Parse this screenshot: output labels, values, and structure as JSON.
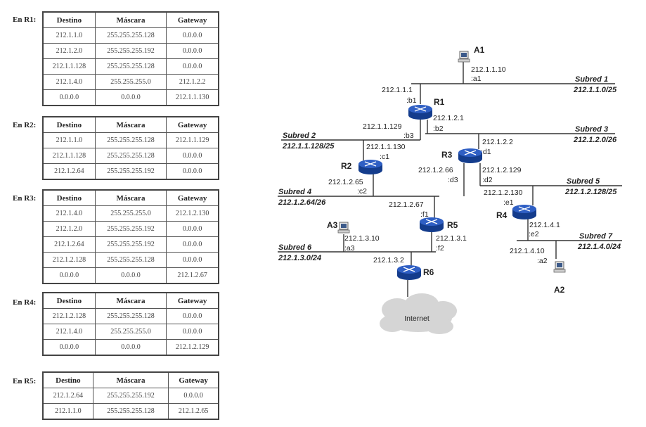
{
  "tables": [
    {
      "label": "En R1:",
      "headers": [
        "Destino",
        "Máscara",
        "Gateway"
      ],
      "rows": [
        [
          "212.1.1.0",
          "255.255.255.128",
          "0.0.0.0"
        ],
        [
          "212.1.2.0",
          "255.255.255.192",
          "0.0.0.0"
        ],
        [
          "212.1.1.128",
          "255.255.255.128",
          "0.0.0.0"
        ],
        [
          "212.1.4.0",
          "255.255.255.0",
          "212.1.2.2"
        ],
        [
          "0.0.0.0",
          "0.0.0.0",
          "212.1.1.130"
        ]
      ]
    },
    {
      "label": "En R2:",
      "headers": [
        "Destino",
        "Máscara",
        "Gateway"
      ],
      "rows": [
        [
          "212.1.1.0",
          "255.255.255.128",
          "212.1.1.129"
        ],
        [
          "212.1.1.128",
          "255.255.255.128",
          "0.0.0.0"
        ],
        [
          "212.1.2.64",
          "255.255.255.192",
          "0.0.0.0"
        ]
      ]
    },
    {
      "label": "En R3:",
      "headers": [
        "Destino",
        "Máscara",
        "Gateway"
      ],
      "rows": [
        [
          "212.1.4.0",
          "255.255.255.0",
          "212.1.2.130"
        ],
        [
          "212.1.2.0",
          "255.255.255.192",
          "0.0.0.0"
        ],
        [
          "212.1.2.64",
          "255.255.255.192",
          "0.0.0.0"
        ],
        [
          "212.1.2.128",
          "255.255.255.128",
          "0.0.0.0"
        ],
        [
          "0.0.0.0",
          "0.0.0.0",
          "212.1.2.67"
        ]
      ]
    },
    {
      "label": "En R4:",
      "headers": [
        "Destino",
        "Máscara",
        "Gateway"
      ],
      "rows": [
        [
          "212.1.2.128",
          "255.255.255.128",
          "0.0.0.0"
        ],
        [
          "212.1.4.0",
          "255.255.255.0",
          "0.0.0.0"
        ],
        [
          "0.0.0.0",
          "0.0.0.0",
          "212.1.2.129"
        ]
      ]
    },
    {
      "label": "En R5:",
      "headers": [
        "Destino",
        "Máscara",
        "Gateway"
      ],
      "rows": [
        [
          "212.1.2.64",
          "255.255.255.192",
          "0.0.0.0"
        ],
        [
          "212.1.1.0",
          "255.255.255.128",
          "212.1.2.65"
        ]
      ]
    }
  ],
  "network": {
    "colors": {
      "router": "#2f5fc4",
      "router_dark": "#143c8c",
      "cloud": "#d5d5d5",
      "line": "#333333"
    },
    "routers": [
      "R1",
      "R2",
      "R3",
      "R4",
      "R5",
      "R6"
    ],
    "hosts": [
      "A1",
      "A2",
      "A3"
    ],
    "cloud_label": "Internet",
    "subnets": [
      {
        "name": "Subred 1",
        "cidr": "212.1.1.0/25"
      },
      {
        "name": "Subred 2",
        "cidr": "212.1.1.128/25"
      },
      {
        "name": "Subred 3",
        "cidr": "212.1.2.0/26"
      },
      {
        "name": "Subred 4",
        "cidr": "212.1.2.64/26"
      },
      {
        "name": "Subred 5",
        "cidr": "212.1.2.128/25"
      },
      {
        "name": "Subred 6",
        "cidr": "212.1.3.0/24"
      },
      {
        "name": "Subred 7",
        "cidr": "212.1.4.0/24"
      }
    ],
    "labels": {
      "a1_ip": "212.1.1.10",
      "a1_if": ":a1",
      "r1b1_ip": "212.1.1.1",
      "r1b1_if": ":b1",
      "r1b3_ip": "212.1.1.129",
      "r1b3_if": ":b3",
      "r1b2_ip": "212.1.2.1",
      "r1b2_if": ":b2",
      "r2c1_ip": "212.1.1.130",
      "r2c1_if": ":c1",
      "r2c2_ip": "212.1.2.65",
      "r2c2_if": ":c2",
      "r3d1_ip": "212.1.2.2",
      "r3d1_if": ":d1",
      "r3d3_ip": "212.1.2.66",
      "r3d3_if": ":d3",
      "r3d2_ip": "212.1.2.129",
      "r3d2_if": ":d2",
      "r4e1_ip": "212.1.2.130",
      "r4e1_if": ":e1",
      "r4e2_ip": "212.1.4.1",
      "r4e2_if": ":e2",
      "a2_ip": "212.1.4.10",
      "a2_if": ":a2",
      "r5f1_ip": "212.1.2.67",
      "r5f1_if": ":f1",
      "r5f2_ip": "212.1.3.1",
      "r5f2_if": ":f2",
      "a3_ip": "212.1.3.10",
      "a3_if": ":a3",
      "r6_ip": "212.1.3.2"
    }
  }
}
